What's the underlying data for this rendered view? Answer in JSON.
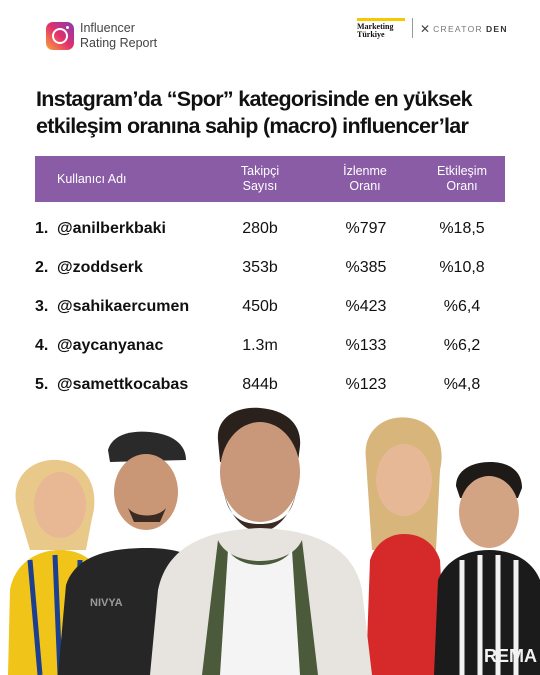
{
  "header": {
    "brand_line1": "Influencer",
    "brand_line2": "Rating Report",
    "partner1_line1": "Marketing",
    "partner1_line2": "Türkiye",
    "partner2_name_a": "CREATOR",
    "partner2_name_b": "DEN",
    "icons": [
      "instagram-icon",
      "creatorden-mark-icon"
    ],
    "colors": {
      "accent": "#8a5ca6",
      "marketing_yellow": "#f5c800"
    }
  },
  "title": {
    "line1": "Instagram’da “Spor” kategorisinde en yüksek",
    "line2": "etkileşim oranına sahip (macro) influencer’lar"
  },
  "table": {
    "headers": {
      "user": "Kullanıcı Adı",
      "followers_l1": "Takipçi",
      "followers_l2": "Sayısı",
      "views_l1": "İzlenme",
      "views_l2": "Oranı",
      "engagement_l1": "Etkileşim",
      "engagement_l2": "Oranı"
    },
    "rows": [
      {
        "rank": "1.",
        "handle": "@anilberkbaki",
        "followers": "280b",
        "views": "%797",
        "engagement": "%18,5"
      },
      {
        "rank": "2.",
        "handle": "@zoddserk",
        "followers": "353b",
        "views": "%385",
        "engagement": "%10,8"
      },
      {
        "rank": "3.",
        "handle": "@sahikaercumen",
        "followers": "450b",
        "views": "%423",
        "engagement": "%6,4"
      },
      {
        "rank": "4.",
        "handle": "@aycanyanac",
        "followers": "1.3m",
        "views": "%133",
        "engagement": "%6,2"
      },
      {
        "rank": "5.",
        "handle": "@samettkocabas",
        "followers": "844b",
        "views": "%123",
        "engagement": "%4,8"
      }
    ]
  },
  "photo": {
    "jersey_text_left": "NIVYA",
    "jersey_text_right": "REMA"
  }
}
